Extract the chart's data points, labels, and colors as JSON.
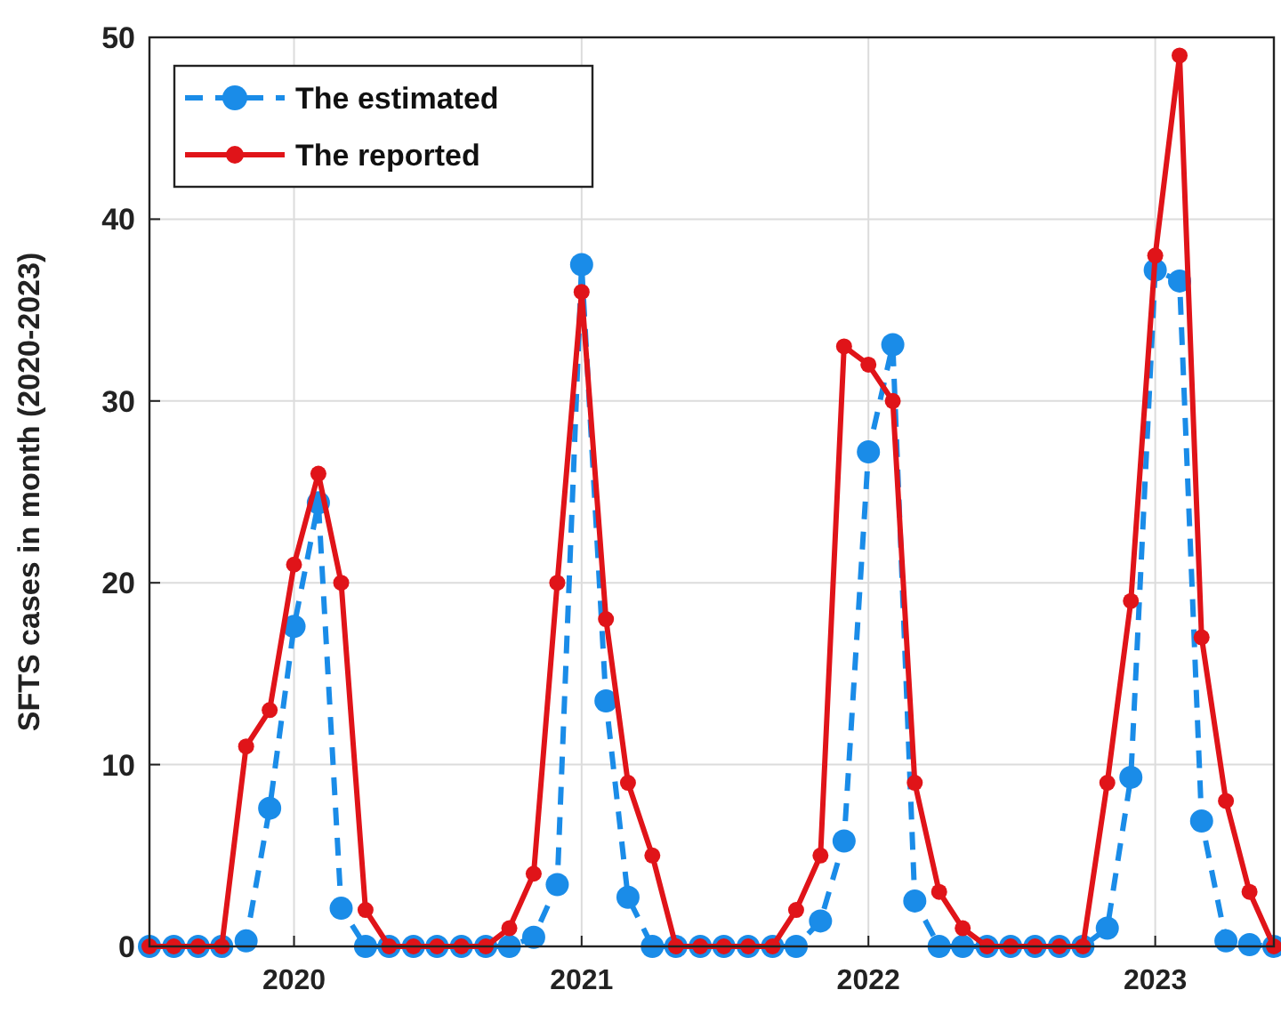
{
  "chart_data": {
    "type": "line",
    "ylabel": "SFTS cases in month (2020-2023)",
    "x": [
      "2019-07",
      "2019-08",
      "2019-09",
      "2019-10",
      "2019-11",
      "2019-12",
      "2020-01",
      "2020-02",
      "2020-03",
      "2020-04",
      "2020-05",
      "2020-06",
      "2020-07",
      "2020-08",
      "2020-09",
      "2020-10",
      "2020-11",
      "2020-12",
      "2021-01",
      "2021-02",
      "2021-03",
      "2021-04",
      "2021-05",
      "2021-06",
      "2021-07",
      "2021-08",
      "2021-09",
      "2021-10",
      "2021-11",
      "2021-12",
      "2022-01",
      "2022-02",
      "2022-03",
      "2022-04",
      "2022-05",
      "2022-06",
      "2022-07",
      "2022-08",
      "2022-09",
      "2022-10",
      "2022-11",
      "2022-12",
      "2023-01",
      "2023-02",
      "2023-03",
      "2023-04",
      "2023-05",
      "2023-06"
    ],
    "series": [
      {
        "name": "The estimated",
        "color": "#1a8ce8",
        "line_style": "dashed",
        "values": [
          0,
          0,
          0,
          0,
          0.3,
          7.6,
          17.6,
          24.4,
          2.1,
          0,
          0,
          0,
          0,
          0,
          0,
          0,
          0.5,
          3.4,
          37.5,
          13.5,
          2.7,
          0,
          0,
          0,
          0,
          0,
          0,
          0,
          1.4,
          5.8,
          27.2,
          33.1,
          2.5,
          0,
          0,
          0,
          0,
          0,
          0,
          0,
          1,
          9.3,
          37.2,
          36.6,
          6.9,
          0.3,
          0.1,
          0
        ]
      },
      {
        "name": "The reported",
        "color": "#e01419",
        "line_style": "solid",
        "values": [
          0,
          0,
          0,
          0,
          11,
          13,
          21,
          26,
          20,
          2,
          0,
          0,
          0,
          0,
          0,
          1,
          4,
          20,
          36,
          18,
          9,
          5,
          0,
          0,
          0,
          0,
          0,
          2,
          5,
          33,
          32,
          30,
          9,
          3,
          1,
          0,
          0,
          0,
          0,
          0,
          9,
          19,
          38,
          49,
          17,
          8,
          3,
          0
        ]
      }
    ],
    "xlim": [
      "2019-07",
      "2023-06"
    ],
    "xticks": [
      "2020",
      "2021",
      "2022",
      "2023"
    ],
    "ylim": [
      0,
      50
    ],
    "yticks": [
      0,
      10,
      20,
      30,
      40,
      50
    ],
    "grid": true,
    "legend": "top left",
    "marker": "circle"
  }
}
